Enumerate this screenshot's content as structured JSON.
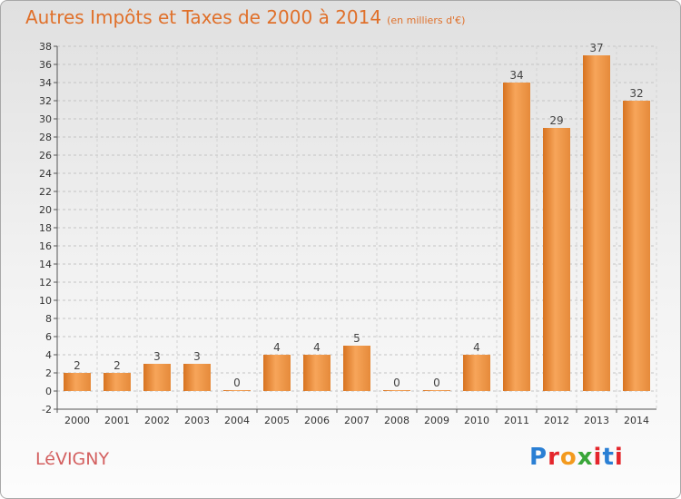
{
  "title": "Autres Impôts et Taxes de 2000 à 2014",
  "subtitle": "(en milliers d'€)",
  "commune": "LéVIGNY",
  "brand": {
    "letters": [
      "P",
      "r",
      "o",
      "x",
      "i",
      "t",
      "i"
    ]
  },
  "colors": {
    "bar_light": "#f7a55a",
    "bar_dark": "#d77320",
    "title": "#e0702a",
    "commune": "#d35f5f"
  },
  "chart_data": {
    "type": "bar",
    "categories": [
      "2000",
      "2001",
      "2002",
      "2003",
      "2004",
      "2005",
      "2006",
      "2007",
      "2008",
      "2009",
      "2010",
      "2011",
      "2012",
      "2013",
      "2014"
    ],
    "values": [
      2,
      2,
      3,
      3,
      0,
      4,
      4,
      5,
      0,
      0,
      4,
      34,
      29,
      37,
      32
    ],
    "value_labels": [
      "2",
      "2",
      "3",
      "3",
      "0",
      "4",
      "4",
      "5",
      "0",
      "0",
      "4",
      "34",
      "29",
      "37",
      "32"
    ],
    "yticks": [
      "-2",
      "0",
      "2",
      "4",
      "6",
      "8",
      "10",
      "12",
      "14",
      "16",
      "18",
      "20",
      "22",
      "24",
      "26",
      "28",
      "30",
      "32",
      "34",
      "36",
      "38"
    ],
    "ylim": [
      -2,
      38
    ],
    "grid": "horizontal dashed",
    "legend": "none"
  }
}
